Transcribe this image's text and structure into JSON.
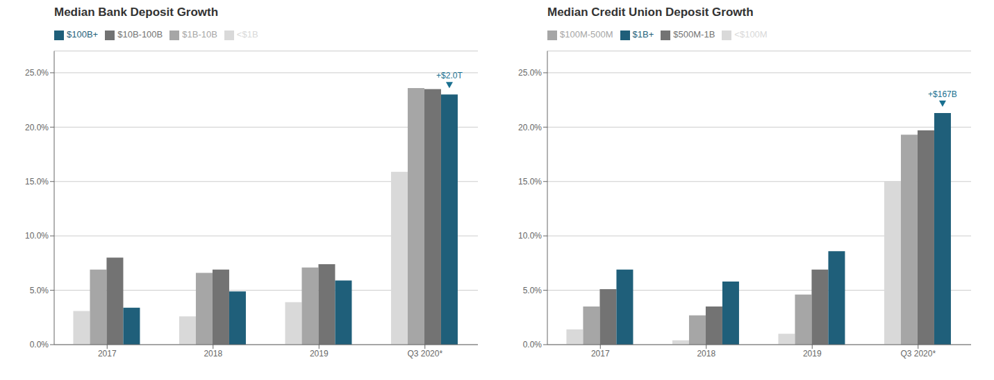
{
  "chart_data": [
    {
      "type": "bar",
      "title": "Median Bank Deposit Growth",
      "categories": [
        "2017",
        "2018",
        "2019",
        "Q3 2020*"
      ],
      "series": [
        {
          "name": "<$1B",
          "color": "#d9d9d9",
          "values": [
            3.1,
            2.6,
            3.9,
            15.9
          ]
        },
        {
          "name": "$1B-10B",
          "color": "#a6a6a6",
          "values": [
            6.9,
            6.6,
            7.1,
            23.6
          ]
        },
        {
          "name": "$10B-100B",
          "color": "#737373",
          "values": [
            8.0,
            6.9,
            7.4,
            23.5
          ]
        },
        {
          "name": "$100B+",
          "color": "#1f5f7a",
          "values": [
            3.4,
            4.9,
            5.9,
            23.0
          ]
        }
      ],
      "ylim": [
        0,
        27
      ],
      "yticks": [
        {
          "value": 0,
          "label": "0.0%"
        },
        {
          "value": 5,
          "label": "5.0%"
        },
        {
          "value": 10,
          "label": "10.0%"
        },
        {
          "value": 15,
          "label": "15.0%"
        },
        {
          "value": 20,
          "label": "20.0%"
        },
        {
          "value": 25,
          "label": "25.0%"
        }
      ],
      "grid": true,
      "legend": "top",
      "annotations": [
        {
          "text": "+$2.0T",
          "x": "Q3 2020*",
          "series": "$100B+",
          "color": "#1a7090"
        }
      ]
    },
    {
      "type": "bar",
      "title": "Median Credit Union Deposit Growth",
      "categories": [
        "2017",
        "2018",
        "2019",
        "Q3 2020*"
      ],
      "series": [
        {
          "name": "<$100M",
          "color": "#d9d9d9",
          "values": [
            1.4,
            0.4,
            1.0,
            15.0
          ]
        },
        {
          "name": "$100M-500M",
          "color": "#a6a6a6",
          "values": [
            3.5,
            2.7,
            4.6,
            19.3
          ]
        },
        {
          "name": "$500M-1B",
          "color": "#737373",
          "values": [
            5.1,
            3.5,
            6.9,
            19.7
          ]
        },
        {
          "name": "$1B+",
          "color": "#1f5f7a",
          "values": [
            6.9,
            5.8,
            8.6,
            21.3
          ]
        }
      ],
      "ylim": [
        0,
        27
      ],
      "yticks": [
        {
          "value": 0,
          "label": "0.0%"
        },
        {
          "value": 5,
          "label": "5.0%"
        },
        {
          "value": 10,
          "label": "10.0%"
        },
        {
          "value": 15,
          "label": "15.0%"
        },
        {
          "value": 20,
          "label": "20.0%"
        },
        {
          "value": 25,
          "label": "25.0%"
        }
      ],
      "grid": true,
      "legend": "top",
      "annotations": [
        {
          "text": "+$167B",
          "x": "Q3 2020*",
          "series": "$1B+",
          "color": "#1a7090"
        }
      ]
    }
  ]
}
